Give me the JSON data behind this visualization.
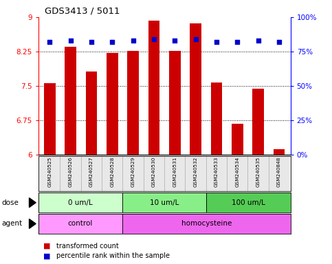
{
  "title": "GDS3413 / 5011",
  "samples": [
    "GSM240525",
    "GSM240526",
    "GSM240527",
    "GSM240528",
    "GSM240529",
    "GSM240530",
    "GSM240531",
    "GSM240532",
    "GSM240533",
    "GSM240534",
    "GSM240535",
    "GSM240848"
  ],
  "bar_values": [
    7.55,
    8.35,
    7.82,
    8.22,
    8.27,
    8.93,
    8.27,
    8.87,
    7.57,
    6.67,
    7.43,
    6.12
  ],
  "dot_values": [
    82,
    83,
    82,
    82,
    83,
    84,
    83,
    84,
    82,
    82,
    83,
    82
  ],
  "bar_color": "#cc0000",
  "dot_color": "#0000cc",
  "ylim_left": [
    6,
    9
  ],
  "ylim_right": [
    0,
    100
  ],
  "yticks_left": [
    6,
    6.75,
    7.5,
    8.25,
    9
  ],
  "ytick_labels_left": [
    "6",
    "6.75",
    "7.5",
    "8.25",
    "9"
  ],
  "yticks_right": [
    0,
    25,
    50,
    75,
    100
  ],
  "ytick_labels_right": [
    "0%",
    "25%",
    "50%",
    "75%",
    "100%"
  ],
  "hlines": [
    6.75,
    7.5,
    8.25
  ],
  "dose_groups": [
    {
      "label": "0 um/L",
      "start": 0,
      "end": 4
    },
    {
      "label": "10 um/L",
      "start": 4,
      "end": 8
    },
    {
      "label": "100 um/L",
      "start": 8,
      "end": 12
    }
  ],
  "dose_colors": [
    "#ccffcc",
    "#88ee88",
    "#55cc55"
  ],
  "agent_groups": [
    {
      "label": "control",
      "start": 0,
      "end": 4
    },
    {
      "label": "homocysteine",
      "start": 4,
      "end": 12
    }
  ],
  "agent_colors": [
    "#ff99ff",
    "#ee66ee"
  ],
  "dose_label": "dose",
  "agent_label": "agent",
  "legend_bar_label": "transformed count",
  "legend_dot_label": "percentile rank within the sample",
  "bar_width": 0.55,
  "xlim": [
    -0.55,
    11.55
  ],
  "bg_color": "#e8e8e8"
}
